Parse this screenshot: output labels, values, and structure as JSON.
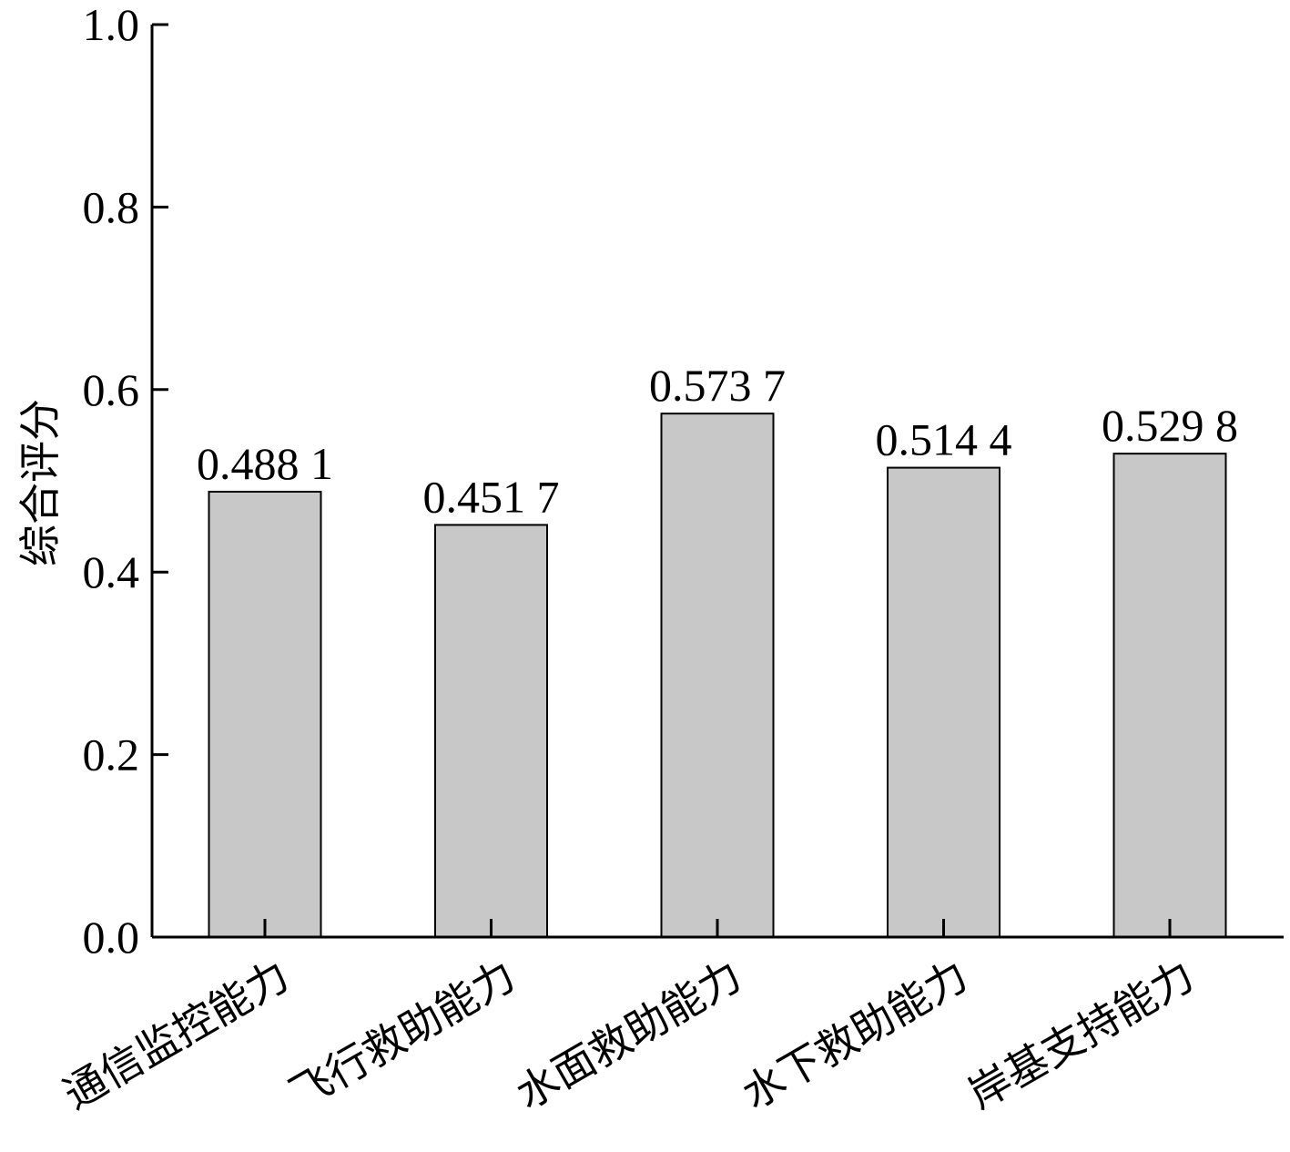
{
  "chart_data": {
    "type": "bar",
    "title": "",
    "xlabel": "",
    "ylabel": "综合评分",
    "ylim": [
      0,
      1.0
    ],
    "yticks": [
      0.0,
      0.2,
      0.4,
      0.6,
      0.8,
      1.0
    ],
    "ytick_labels": [
      "0.0",
      "0.2",
      "0.4",
      "0.6",
      "0.8",
      "1.0"
    ],
    "categories": [
      "通信监控能力",
      "飞行救助能力",
      "水面救助能力",
      "水下救助能力",
      "岸基支持能力"
    ],
    "values": [
      0.4881,
      0.4517,
      0.5737,
      0.5144,
      0.5298
    ],
    "value_labels": [
      "0.488 1",
      "0.451 7",
      "0.573 7",
      "0.514 4",
      "0.529 8"
    ],
    "grid": false,
    "legend": "none",
    "bar_color": "#c8c8c8",
    "edge_color": "#000000"
  }
}
